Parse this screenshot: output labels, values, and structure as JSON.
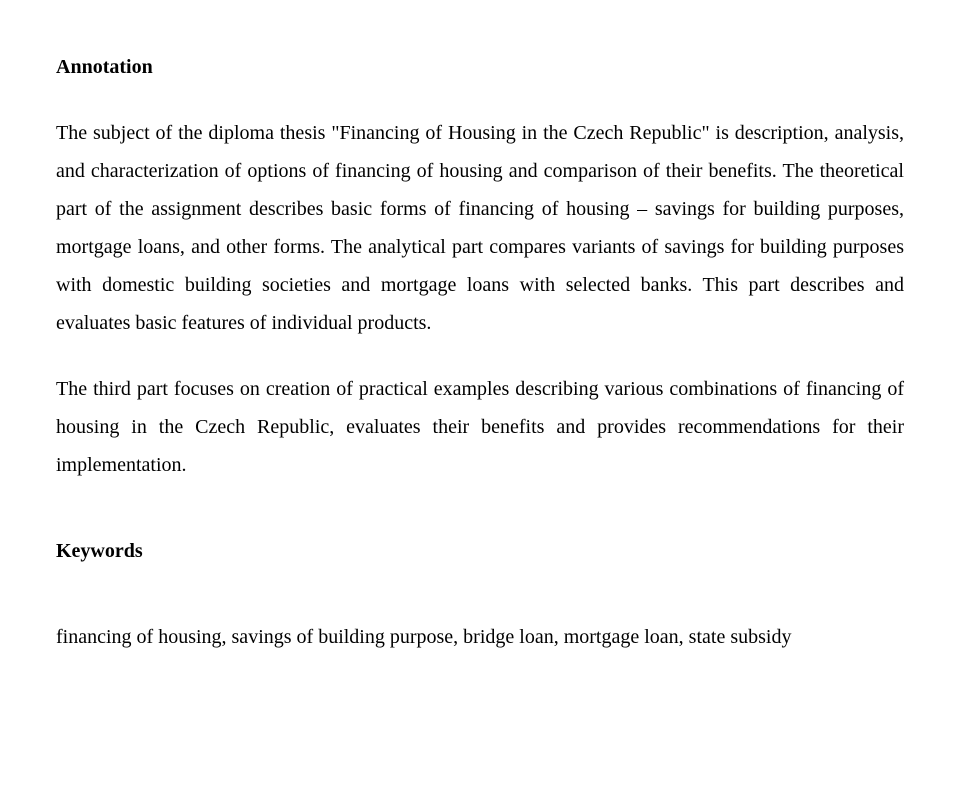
{
  "annotation": {
    "heading": "Annotation",
    "para1": "The subject of the diploma thesis \"Financing of Housing in the Czech Republic\" is description, analysis, and characterization of options of financing of housing and comparison of their benefits. The theoretical part of the assignment describes basic forms of financing of housing – savings for building purposes, mortgage loans, and other forms. The analytical part compares variants of savings for building purposes with domestic building societies and mortgage loans with selected banks. This part describes and evaluates basic features of individual products.",
    "para2": "The third part focuses on creation of practical examples describing various combinations of financing of housing in the Czech Republic, evaluates their benefits and provides recommendations for their implementation."
  },
  "keywords": {
    "heading": "Keywords",
    "line": "financing of housing, savings of building purpose, bridge loan, mortgage loan, state subsidy"
  }
}
